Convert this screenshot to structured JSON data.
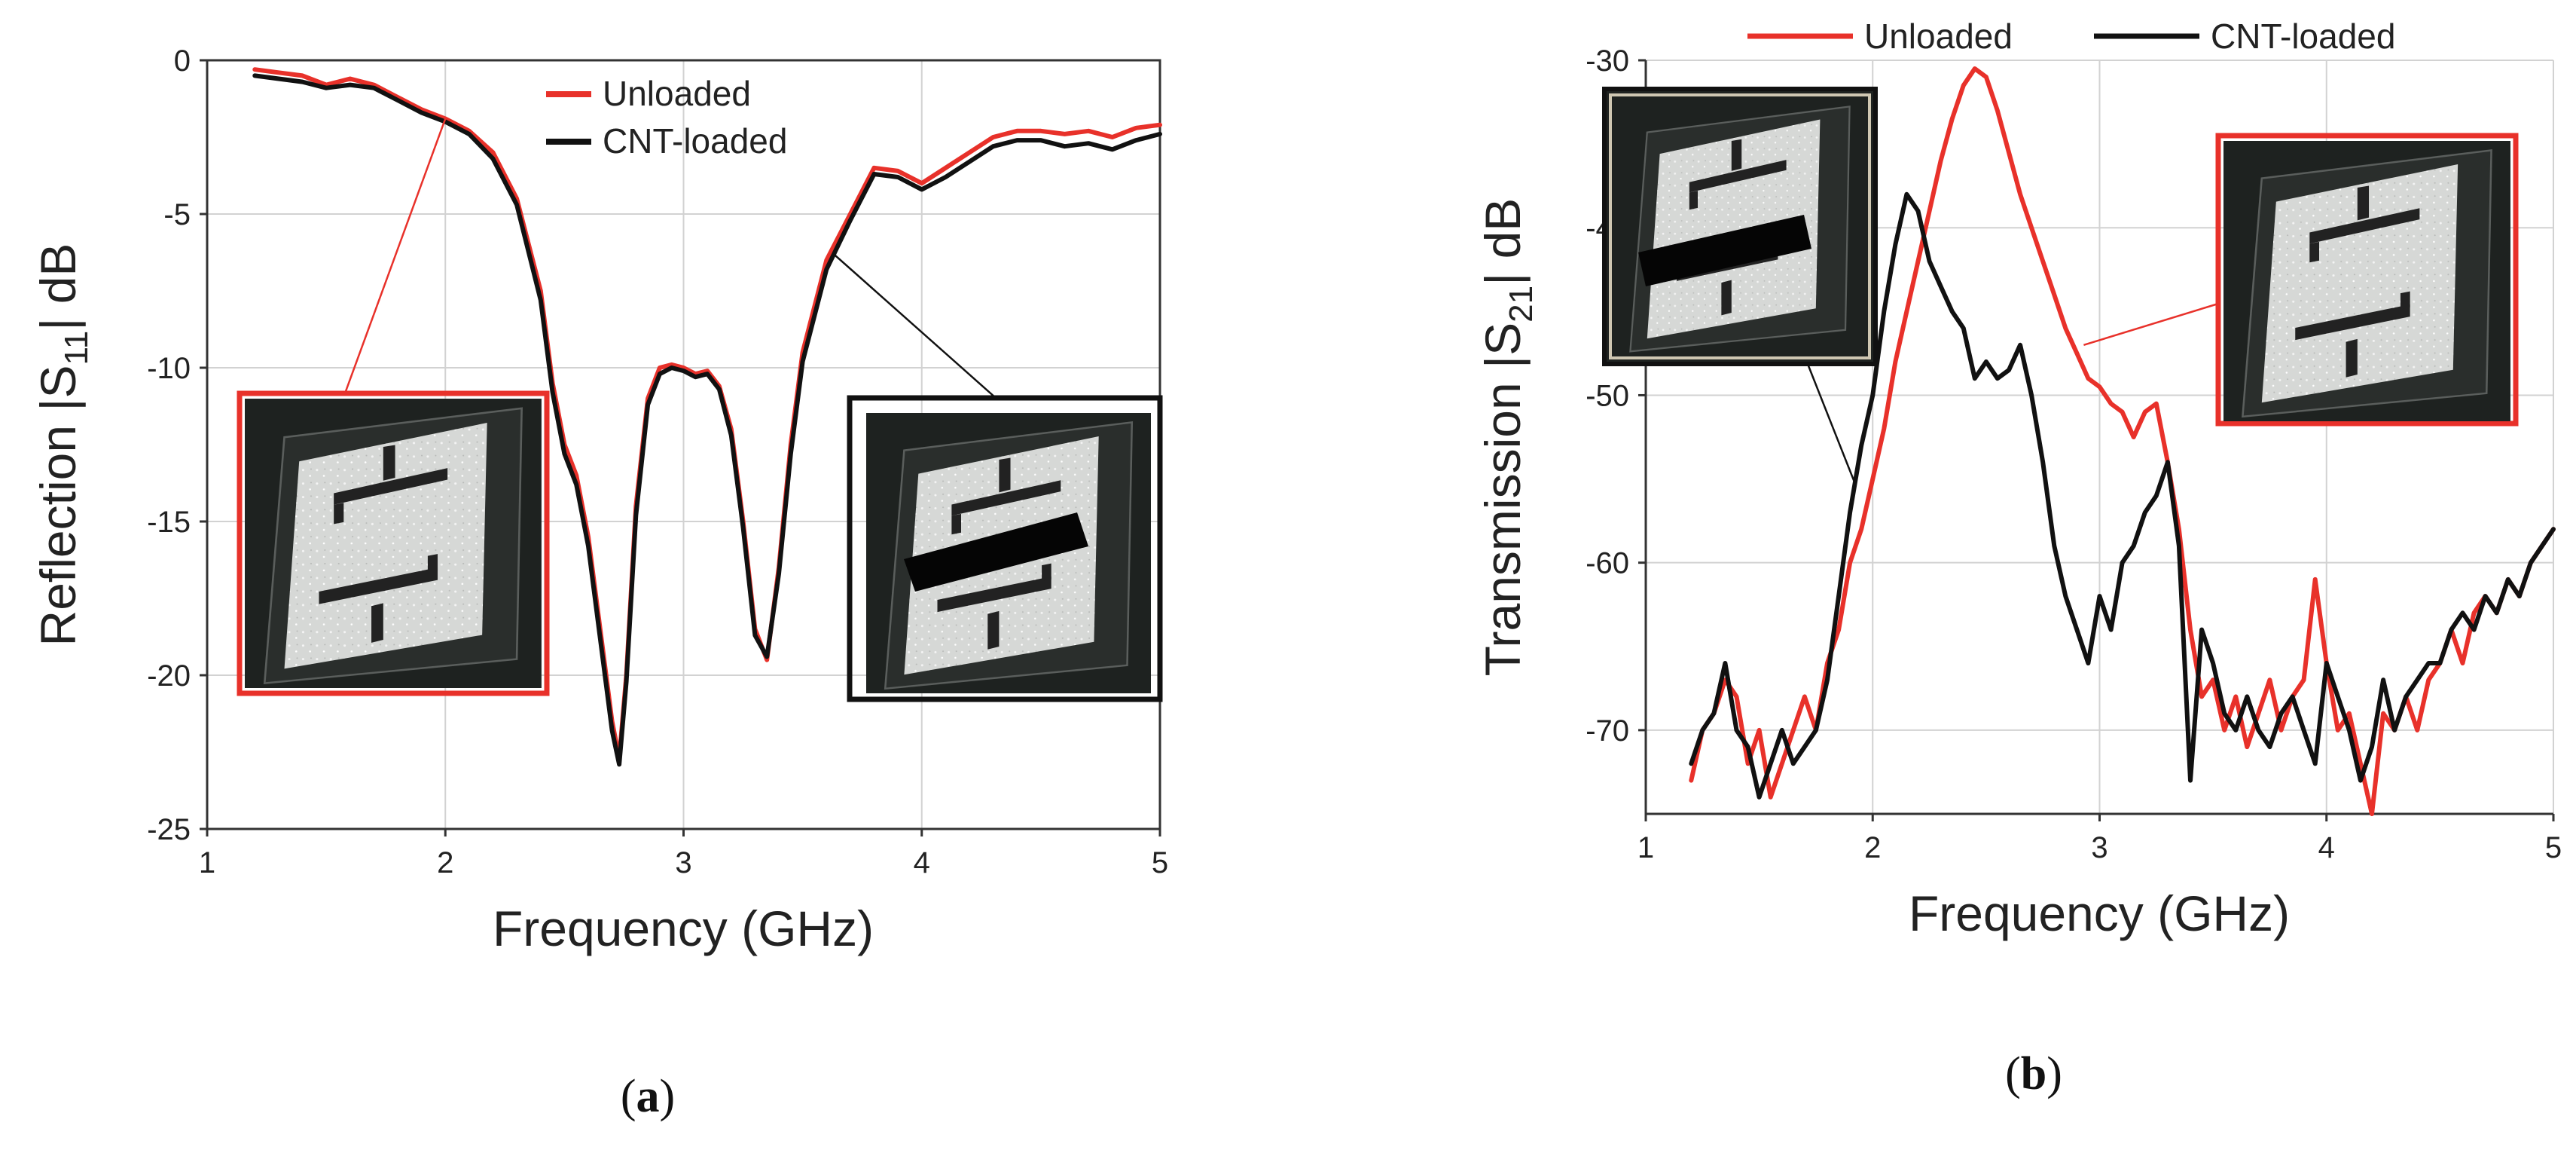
{
  "chart_data": [
    {
      "type": "line",
      "panel_label": "(a)",
      "xlabel": "Frequency (GHz)",
      "ylabel": "Reflection |S11| dB",
      "xlim": [
        1,
        5
      ],
      "ylim": [
        -25,
        0
      ],
      "xticks": [
        "1",
        "2",
        "3",
        "4",
        "5"
      ],
      "yticks": [
        "0",
        "-5",
        "-10",
        "-15",
        "-20",
        "-25"
      ],
      "grid": true,
      "legend_position": "top-right",
      "series": [
        {
          "name": "Unloaded",
          "color": "#e8312a",
          "x": [
            1.2,
            1.3,
            1.4,
            1.5,
            1.6,
            1.7,
            1.8,
            1.9,
            2.0,
            2.1,
            2.2,
            2.3,
            2.4,
            2.45,
            2.5,
            2.55,
            2.6,
            2.65,
            2.7,
            2.73,
            2.76,
            2.8,
            2.85,
            2.9,
            2.95,
            3.0,
            3.05,
            3.1,
            3.15,
            3.2,
            3.25,
            3.3,
            3.35,
            3.4,
            3.45,
            3.5,
            3.6,
            3.7,
            3.8,
            3.9,
            4.0,
            4.1,
            4.2,
            4.3,
            4.4,
            4.5,
            4.6,
            4.7,
            4.8,
            4.9,
            5.0
          ],
          "y": [
            -0.3,
            -0.4,
            -0.5,
            -0.8,
            -0.6,
            -0.8,
            -1.2,
            -1.6,
            -1.9,
            -2.3,
            -3.0,
            -4.5,
            -7.5,
            -10.5,
            -12.5,
            -13.5,
            -15.5,
            -18.5,
            -21.5,
            -22.7,
            -20.0,
            -14.5,
            -11.0,
            -10.0,
            -9.9,
            -10.0,
            -10.2,
            -10.1,
            -10.6,
            -12.0,
            -15.0,
            -18.5,
            -19.5,
            -16.5,
            -12.5,
            -9.5,
            -6.5,
            -5.0,
            -3.5,
            -3.6,
            -4.0,
            -3.5,
            -3.0,
            -2.5,
            -2.3,
            -2.3,
            -2.4,
            -2.3,
            -2.5,
            -2.2,
            -2.1
          ]
        },
        {
          "name": "CNT-loaded",
          "color": "#111111",
          "x": [
            1.2,
            1.3,
            1.4,
            1.5,
            1.6,
            1.7,
            1.8,
            1.9,
            2.0,
            2.1,
            2.2,
            2.3,
            2.4,
            2.45,
            2.5,
            2.55,
            2.6,
            2.65,
            2.7,
            2.73,
            2.76,
            2.8,
            2.85,
            2.9,
            2.95,
            3.0,
            3.05,
            3.1,
            3.15,
            3.2,
            3.25,
            3.3,
            3.35,
            3.4,
            3.45,
            3.5,
            3.6,
            3.7,
            3.8,
            3.9,
            4.0,
            4.1,
            4.2,
            4.3,
            4.4,
            4.5,
            4.6,
            4.7,
            4.8,
            4.9,
            5.0
          ],
          "y": [
            -0.5,
            -0.6,
            -0.7,
            -0.9,
            -0.8,
            -0.9,
            -1.3,
            -1.7,
            -2.0,
            -2.4,
            -3.2,
            -4.7,
            -7.8,
            -10.8,
            -12.8,
            -13.8,
            -15.8,
            -18.8,
            -21.8,
            -22.9,
            -20.2,
            -14.8,
            -11.2,
            -10.2,
            -10.0,
            -10.1,
            -10.3,
            -10.2,
            -10.7,
            -12.2,
            -15.2,
            -18.7,
            -19.4,
            -16.7,
            -12.8,
            -9.8,
            -6.8,
            -5.2,
            -3.7,
            -3.8,
            -4.2,
            -3.8,
            -3.3,
            -2.8,
            -2.6,
            -2.6,
            -2.8,
            -2.7,
            -2.9,
            -2.6,
            -2.4
          ]
        }
      ],
      "insets": [
        {
          "frame_color": "#e8312a",
          "sample": "unloaded",
          "points_to": [
            2.0,
            -1.9
          ]
        },
        {
          "frame_color": "#111111",
          "sample": "cnt-loaded",
          "points_to": [
            3.63,
            -6.3
          ]
        }
      ]
    },
    {
      "type": "line",
      "panel_label": "(b)",
      "xlabel": "Frequency (GHz)",
      "ylabel": "Transmission |S21| dB",
      "xlim": [
        1,
        5
      ],
      "ylim": [
        -75,
        -30
      ],
      "xticks": [
        "1",
        "2",
        "3",
        "4",
        "5"
      ],
      "yticks": [
        "-30",
        "-40",
        "-50",
        "-60",
        "-70"
      ],
      "grid": true,
      "legend_position": "top",
      "series": [
        {
          "name": "Unloaded",
          "color": "#e8312a",
          "x": [
            1.2,
            1.25,
            1.3,
            1.35,
            1.4,
            1.45,
            1.5,
            1.55,
            1.6,
            1.65,
            1.7,
            1.75,
            1.8,
            1.85,
            1.9,
            1.95,
            2.0,
            2.05,
            2.1,
            2.15,
            2.2,
            2.25,
            2.3,
            2.35,
            2.4,
            2.45,
            2.5,
            2.55,
            2.6,
            2.65,
            2.7,
            2.75,
            2.8,
            2.85,
            2.9,
            2.95,
            3.0,
            3.05,
            3.1,
            3.15,
            3.2,
            3.25,
            3.3,
            3.35,
            3.4,
            3.45,
            3.5,
            3.55,
            3.6,
            3.65,
            3.7,
            3.75,
            3.8,
            3.85,
            3.9,
            3.95,
            4.0,
            4.05,
            4.1,
            4.15,
            4.2,
            4.25,
            4.3,
            4.35,
            4.4,
            4.45,
            4.5,
            4.55,
            4.6,
            4.65,
            4.7,
            4.75,
            4.8,
            4.85,
            4.9,
            4.95,
            5.0
          ],
          "y": [
            -73,
            -70,
            -69,
            -67,
            -68,
            -72,
            -70,
            -74,
            -72,
            -70,
            -68,
            -70,
            -66,
            -64,
            -60,
            -58,
            -55,
            -52,
            -48,
            -45,
            -42,
            -39,
            -36,
            -33.5,
            -31.5,
            -30.5,
            -31,
            -33,
            -35.5,
            -38,
            -40,
            -42,
            -44,
            -46,
            -47.5,
            -49,
            -49.5,
            -50.5,
            -51,
            -52.5,
            -51,
            -50.5,
            -54,
            -58,
            -64,
            -68,
            -67,
            -70,
            -68,
            -71,
            -69,
            -67,
            -70,
            -68,
            -67,
            -61,
            -66,
            -70,
            -69,
            -72,
            -75,
            -69,
            -70,
            -68,
            -70,
            -67,
            -66,
            -64,
            -66,
            -63,
            -62,
            -63,
            -61,
            -62,
            -60,
            -59,
            -58
          ]
        },
        {
          "name": "CNT-loaded",
          "color": "#111111",
          "x": [
            1.2,
            1.25,
            1.3,
            1.35,
            1.4,
            1.45,
            1.5,
            1.55,
            1.6,
            1.65,
            1.7,
            1.75,
            1.8,
            1.85,
            1.9,
            1.95,
            2.0,
            2.05,
            2.1,
            2.15,
            2.2,
            2.25,
            2.3,
            2.35,
            2.4,
            2.45,
            2.5,
            2.55,
            2.6,
            2.65,
            2.7,
            2.75,
            2.8,
            2.85,
            2.9,
            2.95,
            3.0,
            3.05,
            3.1,
            3.15,
            3.2,
            3.25,
            3.3,
            3.35,
            3.4,
            3.45,
            3.5,
            3.55,
            3.6,
            3.65,
            3.7,
            3.75,
            3.8,
            3.85,
            3.9,
            3.95,
            4.0,
            4.05,
            4.1,
            4.15,
            4.2,
            4.25,
            4.3,
            4.35,
            4.4,
            4.45,
            4.5,
            4.55,
            4.6,
            4.65,
            4.7,
            4.75,
            4.8,
            4.85,
            4.9,
            4.95,
            5.0
          ],
          "y": [
            -72,
            -70,
            -69,
            -66,
            -70,
            -71,
            -74,
            -72,
            -70,
            -72,
            -71,
            -70,
            -67,
            -62,
            -57,
            -53,
            -50,
            -45,
            -41,
            -38,
            -39,
            -42,
            -43.5,
            -45,
            -46,
            -49,
            -48,
            -49,
            -48.5,
            -47,
            -50,
            -54,
            -59,
            -62,
            -64,
            -66,
            -62,
            -64,
            -60,
            -59,
            -57,
            -56,
            -54,
            -59,
            -73,
            -64,
            -66,
            -69,
            -70,
            -68,
            -70,
            -71,
            -69,
            -68,
            -70,
            -72,
            -66,
            -68,
            -70,
            -73,
            -71,
            -67,
            -70,
            -68,
            -67,
            -66,
            -66,
            -64,
            -63,
            -64,
            -62,
            -63,
            -61,
            -62,
            -60,
            -59,
            -58
          ]
        }
      ],
      "insets": [
        {
          "frame_color": "#111111",
          "sample": "cnt-loaded",
          "points_to": [
            1.92,
            -55.2
          ]
        },
        {
          "frame_color": "#e8312a",
          "sample": "unloaded",
          "points_to": [
            2.93,
            -47.0
          ]
        }
      ]
    }
  ]
}
